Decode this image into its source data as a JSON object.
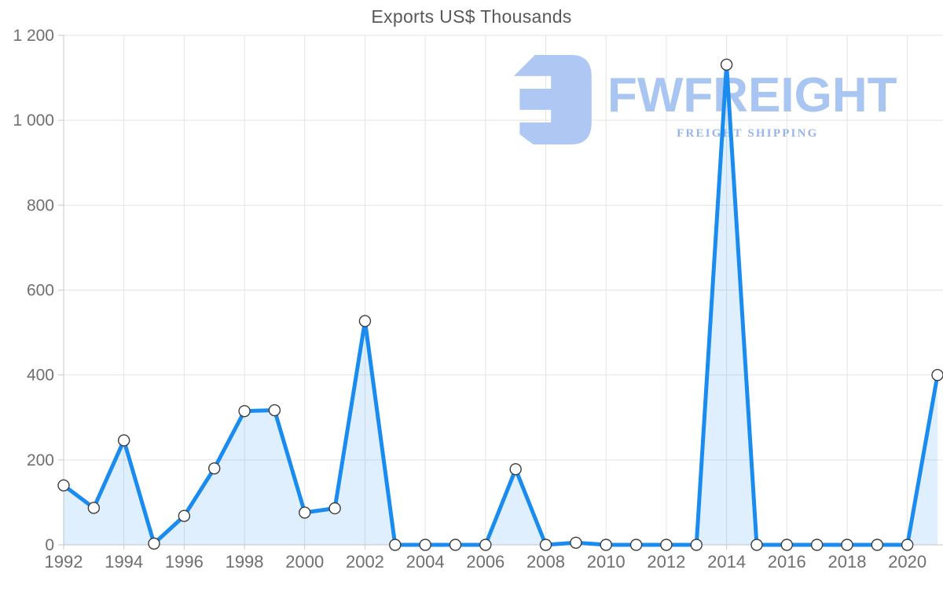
{
  "title": "Exports US$ Thousands",
  "watermark": {
    "brand": "FWFREIGHT",
    "tagline": "FREIGHT SHIPPING",
    "logo_icon": "fwfreight-reversed-e-logo",
    "colors": {
      "primary": "#a9c5f1",
      "secondary": "#97b5e9",
      "logo": "#aec8f3"
    }
  },
  "chart_data": {
    "type": "area",
    "title": "Exports US$ Thousands",
    "xlabel": "",
    "ylabel": "",
    "x": [
      1992,
      1993,
      1994,
      1995,
      1996,
      1997,
      1998,
      1999,
      2000,
      2001,
      2002,
      2003,
      2004,
      2005,
      2006,
      2007,
      2008,
      2009,
      2010,
      2011,
      2012,
      2013,
      2014,
      2015,
      2016,
      2017,
      2018,
      2019,
      2020,
      2021
    ],
    "values": [
      140,
      87,
      246,
      3,
      68,
      180,
      315,
      317,
      76,
      86,
      527,
      0,
      0,
      0,
      0,
      178,
      0,
      5,
      0,
      0,
      0,
      0,
      1131,
      0,
      0,
      0,
      0,
      0,
      0,
      400
    ],
    "ylim": [
      0,
      1200
    ],
    "y_ticks": [
      0,
      200,
      400,
      600,
      800,
      1000,
      1200
    ],
    "y_tick_labels": [
      "0",
      "200",
      "400",
      "600",
      "800",
      "1 000",
      "1 200"
    ],
    "x_tick_years": [
      1992,
      1994,
      1996,
      1998,
      2000,
      2002,
      2004,
      2006,
      2008,
      2010,
      2012,
      2014,
      2016,
      2018,
      2020
    ],
    "x_tick_labels": [
      "1992",
      "1994",
      "1996",
      "1998",
      "2000",
      "2002",
      "2004",
      "2006",
      "2008",
      "2010",
      "2012",
      "2014",
      "2016",
      "2018",
      "2020"
    ],
    "grid": true,
    "legend": false,
    "marker": "circle",
    "colors": {
      "line": "#1a8cf0",
      "fill": "rgba(26,140,240,0.14)",
      "marker_fill": "#ffffff",
      "marker_stroke": "#3c3c3c",
      "grid": "#e4e4e4",
      "axis": "#c9c9c9",
      "label": "#6f6f6f",
      "title": "#595959"
    }
  }
}
